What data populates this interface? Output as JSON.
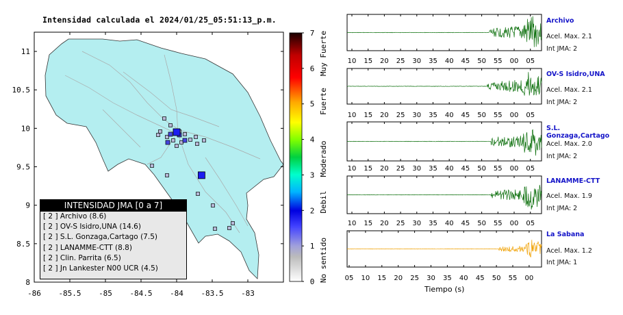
{
  "title": "Intensidad calculada el 2024/01/25_05:51:13_p.m.",
  "chart_data": [
    {
      "type": "scatter",
      "subtype": "map",
      "x_ticks": [
        "-86",
        "-85.5",
        "-85",
        "-84.5",
        "-84",
        "-83.5",
        "-83"
      ],
      "y_ticks": [
        "8",
        "8.5",
        "9",
        "9.5",
        "10",
        "10.5",
        "11"
      ],
      "xlim": [
        -86,
        -82.5
      ],
      "ylim": [
        8,
        11.25
      ],
      "colorbar": {
        "ticks": [
          "0",
          "1",
          "2",
          "3",
          "4",
          "5",
          "6",
          "7"
        ],
        "labels": [
          "No sentido",
          "Debil",
          "Moderado",
          "Fuerte",
          "Muy Fuerte"
        ]
      },
      "large_markers": [
        {
          "lon": -84.0,
          "lat": 9.95,
          "intensity": 2
        },
        {
          "lon": -83.65,
          "lat": 9.39,
          "intensity": 2
        }
      ]
    },
    {
      "type": "line",
      "subtype": "seismogram",
      "xlabel": "Tiempo (s)",
      "traces": [
        {
          "name": "Archivo",
          "acel_label": "Acel. Max. 2.1",
          "int_label": "Int JMA: 2",
          "ticks": [
            "10",
            "15",
            "20",
            "25",
            "30",
            "35",
            "40",
            "45",
            "50",
            "55",
            "00",
            "05"
          ]
        },
        {
          "name": "OV-S Isidro,UNA",
          "acel_label": "Acel. Max. 2.1",
          "int_label": "Int JMA: 2",
          "ticks": [
            "10",
            "15",
            "20",
            "25",
            "30",
            "35",
            "40",
            "45",
            "50",
            "55",
            "00",
            "05"
          ]
        },
        {
          "name": "S.L. Gonzaga,Cartago",
          "acel_label": "Acel. Max. 2.0",
          "int_label": "Int JMA: 2",
          "ticks": [
            "10",
            "15",
            "20",
            "25",
            "30",
            "35",
            "40",
            "45",
            "50",
            "55",
            "00",
            "05"
          ]
        },
        {
          "name": "LANAMME-CTT",
          "acel_label": "Acel. Max. 1.9",
          "int_label": "Int JMA: 2",
          "ticks": [
            "10",
            "15",
            "20",
            "25",
            "30",
            "35",
            "40",
            "45",
            "50",
            "55",
            "00",
            "05"
          ]
        },
        {
          "name": "La Sabana",
          "acel_label": "Acel. Max. 1.2",
          "int_label": "Int JMA: 1",
          "ticks": [
            "05",
            "10",
            "15",
            "20",
            "25",
            "30",
            "35",
            "40",
            "45",
            "50",
            "55",
            "00"
          ]
        }
      ]
    }
  ],
  "legend": {
    "title": "INTENSIDAD JMA [0 a 7]",
    "items": [
      "[ 2 ]  Archivo (8.6)",
      "[ 2 ]  OV-S Isidro,UNA (14.6)",
      "[ 2 ]  S.L. Gonzaga,Cartago (7.5)",
      "[ 2 ]  LANAMME-CTT (8.8)",
      "[ 2 ]  Clin. Parrita (6.5)",
      "[ 2 ]  Jn Lankester N00 UCR (4.5)"
    ]
  },
  "colors": {
    "trace_strong": "#0a6e0a",
    "trace_weak": "#f0a000",
    "land": "#b4eef0",
    "marker": "#1c1cf0",
    "station_name": "#1414c8"
  }
}
